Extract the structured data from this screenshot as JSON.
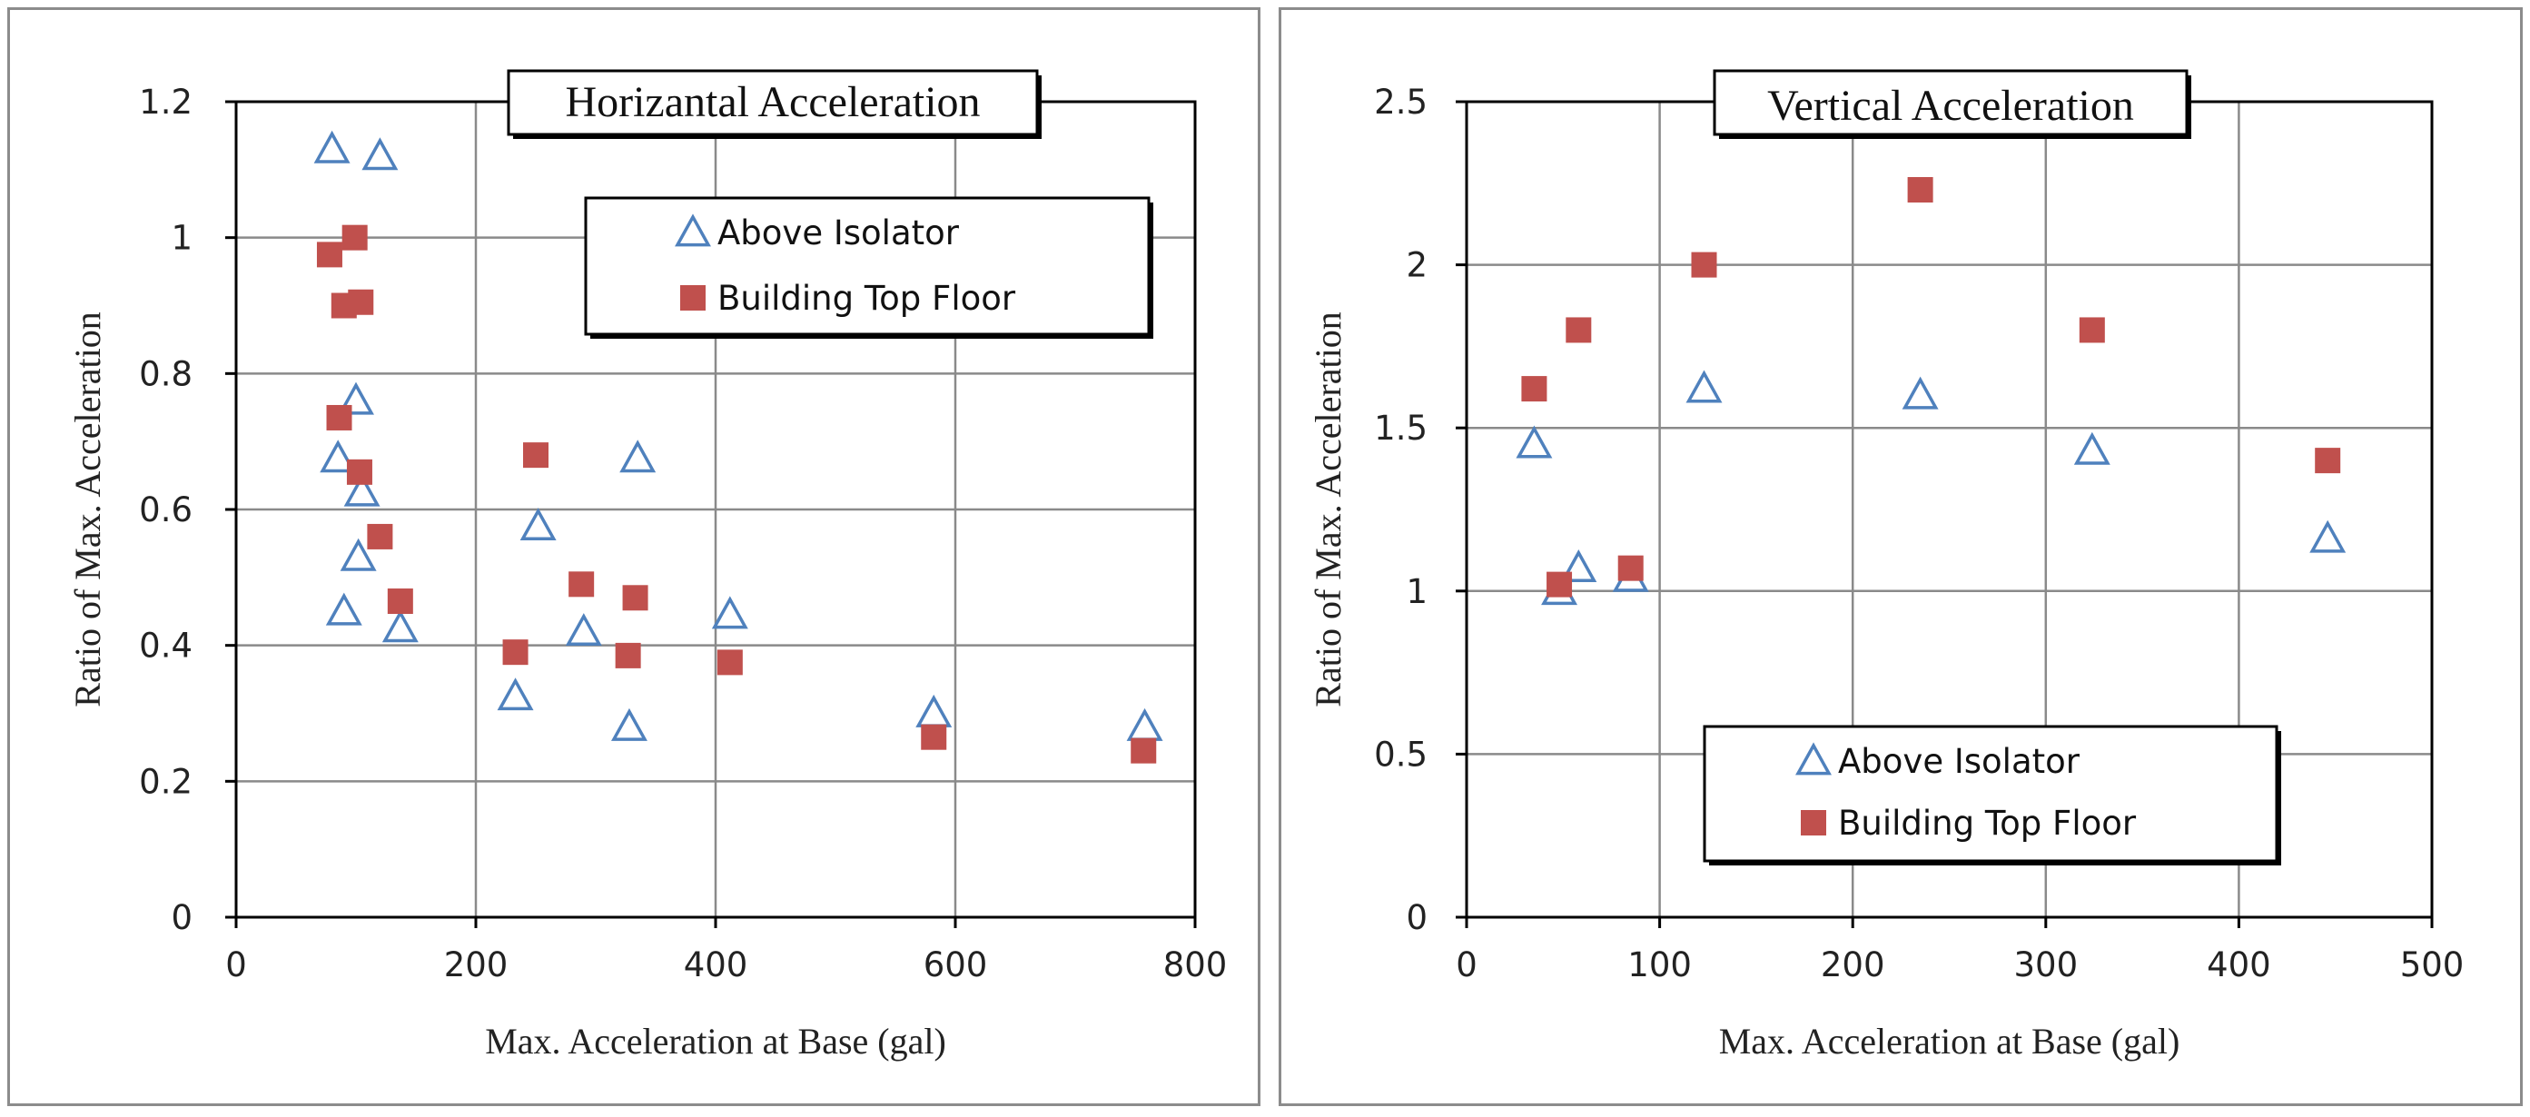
{
  "chart_data": [
    {
      "type": "scatter",
      "title": "Horizantal Acceleration",
      "xlabel": "Max. Acceleration at  Base   (gal)",
      "ylabel": "Ratio of Max. Acceleration",
      "xlim": [
        0,
        800
      ],
      "ylim": [
        0,
        1.2
      ],
      "xticks": [
        0,
        200,
        400,
        600,
        800
      ],
      "yticks": [
        0,
        0.2,
        0.4,
        0.6,
        0.8,
        1,
        1.2
      ],
      "xtick_labels": [
        "0",
        "200",
        "400",
        "600",
        "800"
      ],
      "ytick_labels": [
        "0",
        "0.2",
        "0.4",
        "0.6",
        "0.8",
        "1",
        "1.2"
      ],
      "grid": true,
      "legend_position": "top-right",
      "series": [
        {
          "name": "Above Isolator",
          "marker": "triangle-open",
          "color": "#4f81bd",
          "points": [
            [
              80,
              1.13
            ],
            [
              120,
              1.12
            ],
            [
              100,
              0.76
            ],
            [
              85,
              0.675
            ],
            [
              105,
              0.625
            ],
            [
              102,
              0.53
            ],
            [
              90,
              0.45
            ],
            [
              137,
              0.425
            ],
            [
              252,
              0.575
            ],
            [
              335,
              0.675
            ],
            [
              290,
              0.42
            ],
            [
              233,
              0.325
            ],
            [
              328,
              0.28
            ],
            [
              412,
              0.445
            ],
            [
              582,
              0.3
            ],
            [
              758,
              0.28
            ]
          ]
        },
        {
          "name": "Building Top Floor",
          "marker": "square-filled",
          "color": "#c0504d",
          "points": [
            [
              78,
              0.975
            ],
            [
              99,
              1.0
            ],
            [
              90,
              0.9
            ],
            [
              104,
              0.905
            ],
            [
              86,
              0.735
            ],
            [
              103,
              0.655
            ],
            [
              120,
              0.56
            ],
            [
              137,
              0.465
            ],
            [
              250,
              0.68
            ],
            [
              288,
              0.49
            ],
            [
              333,
              0.47
            ],
            [
              233,
              0.39
            ],
            [
              327,
              0.385
            ],
            [
              412,
              0.375
            ],
            [
              582,
              0.265
            ],
            [
              757,
              0.245
            ]
          ]
        }
      ]
    },
    {
      "type": "scatter",
      "title": "Vertical Acceleration",
      "xlabel": "Max. Acceleration at  Base   (gal)",
      "ylabel": "Ratio of Max. Acceleration",
      "xlim": [
        0,
        500
      ],
      "ylim": [
        0,
        2.5
      ],
      "xticks": [
        0,
        100,
        200,
        300,
        400,
        500
      ],
      "yticks": [
        0,
        0.5,
        1,
        1.5,
        2,
        2.5
      ],
      "xtick_labels": [
        "0",
        "100",
        "200",
        "300",
        "400",
        "500"
      ],
      "ytick_labels": [
        "0",
        "0.5",
        "1",
        "1.5",
        "2",
        "2.5"
      ],
      "grid": true,
      "legend_position": "bottom-right",
      "series": [
        {
          "name": "Above Isolator",
          "marker": "triangle-open",
          "color": "#4f81bd",
          "points": [
            [
              35,
              1.45
            ],
            [
              48,
              1.0
            ],
            [
              58,
              1.07
            ],
            [
              85,
              1.04
            ],
            [
              123,
              1.62
            ],
            [
              235,
              1.6
            ],
            [
              324,
              1.43
            ],
            [
              446,
              1.16
            ]
          ]
        },
        {
          "name": "Building Top Floor",
          "marker": "square-filled",
          "color": "#c0504d",
          "points": [
            [
              35,
              1.62
            ],
            [
              48,
              1.02
            ],
            [
              58,
              1.8
            ],
            [
              85,
              1.07
            ],
            [
              123,
              2.0
            ],
            [
              235,
              2.23
            ],
            [
              324,
              1.8
            ],
            [
              446,
              1.4
            ]
          ]
        }
      ]
    }
  ]
}
